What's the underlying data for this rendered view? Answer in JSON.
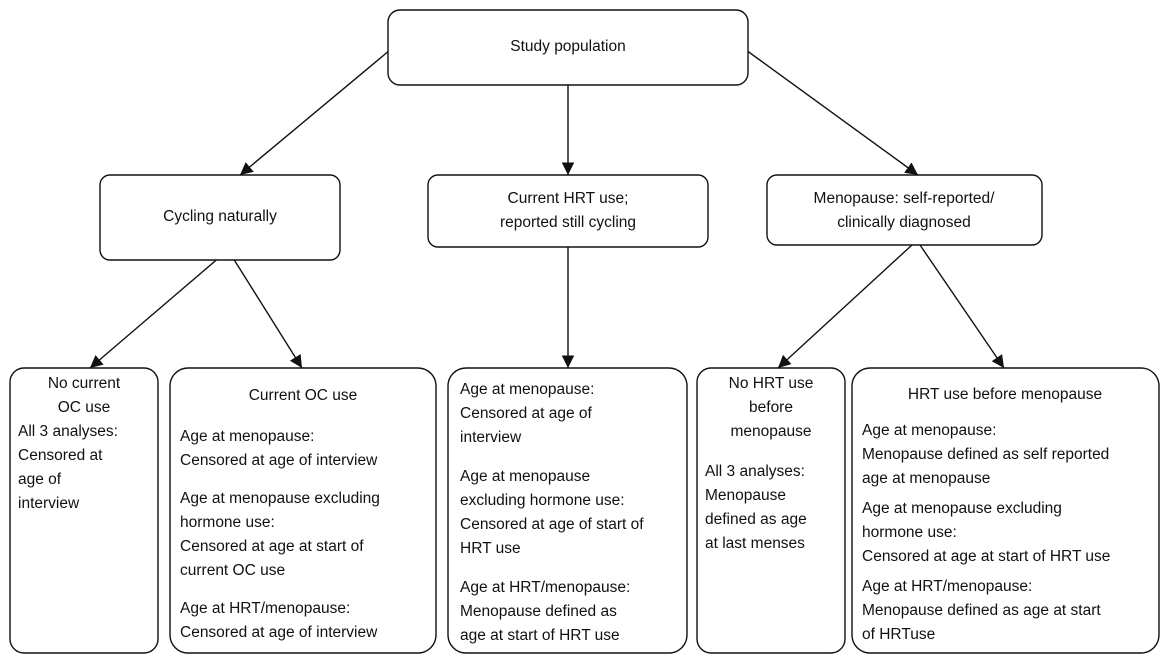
{
  "root": {
    "label": "Study population"
  },
  "groups": [
    {
      "lines": [
        "Cycling naturally"
      ]
    },
    {
      "lines": [
        "Current HRT use;",
        "reported still cycling"
      ]
    },
    {
      "lines": [
        "Menopause: self-reported/",
        "clinically diagnosed"
      ]
    }
  ],
  "leaves": [
    {
      "heading": [
        "No current",
        "OC use"
      ],
      "sections": [
        [
          "All 3 analyses:",
          "Censored at",
          "age of",
          "interview"
        ]
      ]
    },
    {
      "heading": [
        "Current OC use"
      ],
      "sections": [
        [
          "Age at menopause:",
          "Censored at age of interview"
        ],
        [
          "Age at menopause excluding",
          "hormone use:",
          "Censored at age at start of",
          "current OC use"
        ],
        [
          "Age at HRT/menopause:",
          "Censored at age of interview"
        ]
      ]
    },
    {
      "heading": [],
      "sections": [
        [
          "Age at menopause:",
          "Censored at age of",
          "interview"
        ],
        [
          "Age at menopause",
          "excluding hormone use:",
          "Censored at age of start of",
          "HRT use"
        ],
        [
          "Age at HRT/menopause:",
          "Menopause defined as",
          "age at start of HRT use"
        ]
      ]
    },
    {
      "heading": [
        "No HRT use",
        "before",
        "menopause"
      ],
      "sections": [
        [
          "All 3 analyses:",
          "Menopause",
          "defined as age",
          "at last menses"
        ]
      ]
    },
    {
      "heading": [
        "HRT use before menopause"
      ],
      "sections": [
        [
          "Age at menopause:",
          "Menopause defined as self reported",
          "age at menopause"
        ],
        [
          "Age at menopause excluding",
          "hormone use:",
          "Censored at age at start of HRT use"
        ],
        [
          "Age at HRT/menopause:",
          "Menopause defined as age at start",
          "of HRTuse"
        ]
      ]
    }
  ]
}
